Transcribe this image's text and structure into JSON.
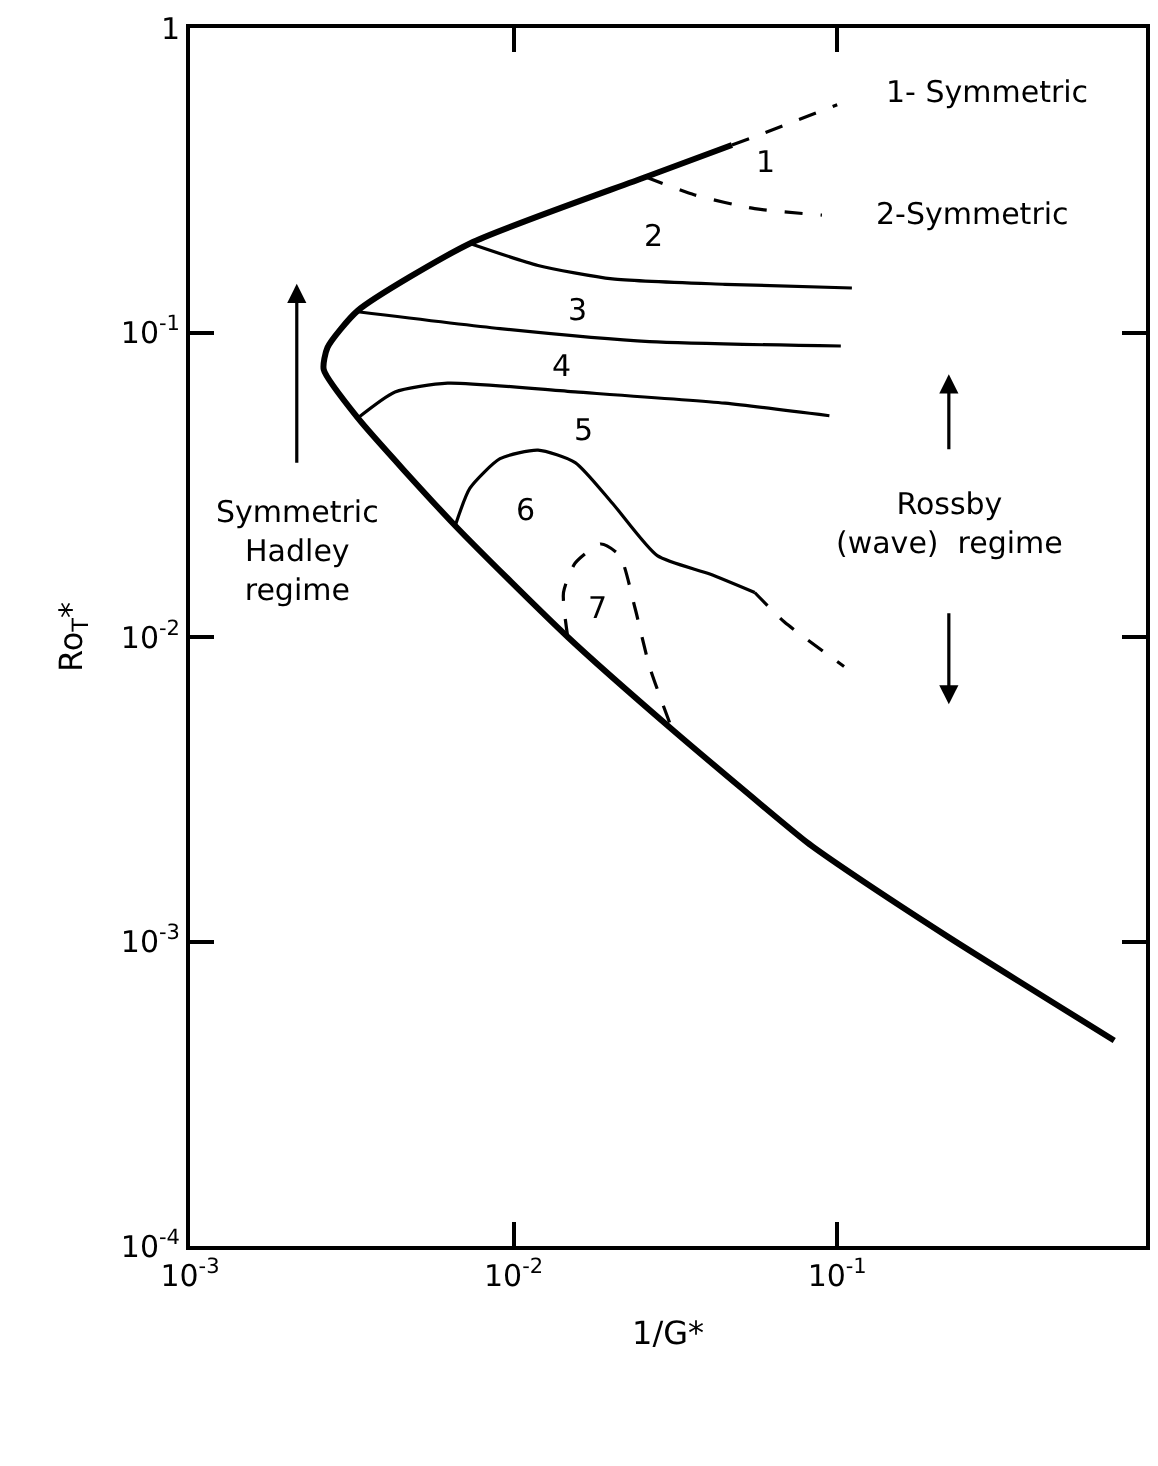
{
  "chart_data": {
    "type": "line",
    "xlabel": "1/G*",
    "ylabel": "Ro$_{T}$*",
    "log": "xy",
    "marker": "none",
    "xlim": [
      0.001,
      0.9
    ],
    "ylim": [
      0.0001,
      1
    ],
    "xticks": [
      {
        "value": 0.001,
        "label": "10$^{-3}$"
      },
      {
        "value": 0.01,
        "label": "10$^{-2}$"
      },
      {
        "value": 0.1,
        "label": "10$^{-1}$"
      }
    ],
    "yticks": [
      {
        "value": 0.0001,
        "label": "10$^{-4}$"
      },
      {
        "value": 0.001,
        "label": "10$^{-3}$"
      },
      {
        "value": 0.01,
        "label": "10$^{-2}$"
      },
      {
        "value": 0.1,
        "label": "10$^{-1}$"
      },
      1
    ],
    "series": [
      {
        "color": "#000000",
        "line_style": "solid",
        "x": [
          0.0473,
          0.0256,
          0.00733,
          0.0033,
          0.00266,
          0.00259,
          0.0033,
          0.0066,
          0.0147,
          0.0309,
          0.0805,
          0.1,
          0.222,
          0.718
        ],
        "values": [
          0.413,
          0.324,
          0.196,
          0.118,
          0.0893,
          0.0755,
          0.0524,
          0.0232,
          0.01,
          0.00497,
          0.00212,
          0.0018,
          0.00103,
          0.000473
        ]
      },
      {
        "color": "#000000",
        "line_style": "dashed",
        "x": [
          0.0473,
          0.0556,
          0.1
        ],
        "values": [
          0.413,
          0.44,
          0.56
        ]
      },
      {
        "color": "#000000",
        "line_style": "dashed",
        "x": [
          0.0256,
          0.0363,
          0.0556,
          0.0897
        ],
        "values": [
          0.324,
          0.283,
          0.255,
          0.243
        ]
      },
      {
        "color": "#000000",
        "line_style": "solid",
        "x": [
          0.00733,
          0.0119,
          0.0202,
          0.045,
          0.111
        ],
        "values": [
          0.196,
          0.166,
          0.15,
          0.144,
          0.14
        ]
      },
      {
        "color": "#000000",
        "line_style": "solid",
        "x": [
          0.0033,
          0.00908,
          0.0263,
          0.1026
        ],
        "values": [
          0.117,
          0.103,
          0.0933,
          0.0903
        ]
      },
      {
        "color": "#000000",
        "line_style": "solid",
        "x": [
          0.0033,
          0.0043,
          0.00625,
          0.0155,
          0.045,
          0.0946
        ],
        "values": [
          0.0524,
          0.0638,
          0.0682,
          0.0638,
          0.0586,
          0.0533
        ]
      },
      {
        "color": "#000000",
        "line_style": "solid",
        "x": [
          0.0066,
          0.00733,
          0.00908,
          0.0119,
          0.0155,
          0.0202,
          0.0278,
          0.0404,
          0.0556
        ],
        "values": [
          0.0232,
          0.0308,
          0.0385,
          0.0411,
          0.0374,
          0.0275,
          0.0185,
          0.0161,
          0.014
        ]
      },
      {
        "color": "#000000",
        "line_style": "dashed",
        "x": [
          0.0556,
          0.0687,
          0.105
        ],
        "values": [
          0.014,
          0.0112,
          0.008
        ]
      },
      {
        "color": "#000000",
        "line_style": "dashed",
        "x": [
          0.0147,
          0.01426,
          0.0155,
          0.0186,
          0.0213,
          0.0237,
          0.0263,
          0.0309
        ],
        "values": [
          0.01,
          0.014,
          0.0175,
          0.0202,
          0.0185,
          0.0125,
          0.008,
          0.00497
        ]
      }
    ],
    "annotations": [
      "1- Symmetric",
      "2-Symmetric",
      "1",
      "2",
      "3",
      "4",
      "5",
      "6",
      "7",
      "Symmetric\nHadley\nregime",
      "Rossby\n(wave)  regime"
    ]
  }
}
